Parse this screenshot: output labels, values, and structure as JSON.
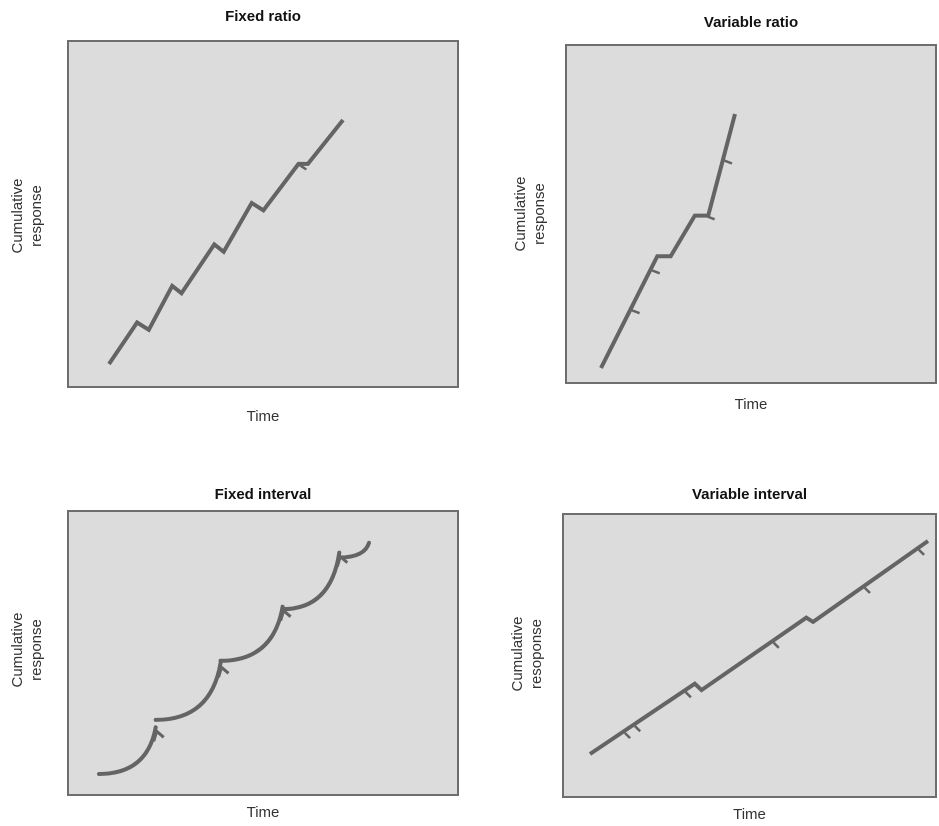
{
  "chart_data": [
    {
      "type": "line",
      "title": "Fixed ratio",
      "xlabel": "Time",
      "ylabel": [
        "Cumulative",
        "response"
      ],
      "grid": false,
      "series": [
        {
          "x": [
            0,
            0.12,
            0.17,
            0.27,
            0.31,
            0.45,
            0.49,
            0.61,
            0.66,
            0.81,
            0.85,
            1.0
          ],
          "y": [
            0,
            0.17,
            0.14,
            0.32,
            0.29,
            0.49,
            0.46,
            0.66,
            0.63,
            0.82,
            0.82,
            1.0
          ]
        }
      ],
      "reinforcement_markers_x": [
        0.12,
        0.27,
        0.45,
        0.61,
        0.81
      ]
    },
    {
      "type": "line",
      "title": "Variable ratio",
      "xlabel": "Time",
      "ylabel": [
        "Cumulative",
        "response"
      ],
      "grid": false,
      "series": [
        {
          "x": [
            0,
            0.42,
            0.52,
            0.7,
            0.8,
            1.0
          ],
          "y": [
            0,
            0.44,
            0.44,
            0.6,
            0.6,
            1.0
          ]
        }
      ],
      "reinforcement_markers_x": [
        0.22,
        0.37,
        0.78,
        0.91
      ]
    },
    {
      "type": "line",
      "title": "Fixed interval",
      "xlabel": "Time",
      "ylabel": [
        "Cumulative",
        "response"
      ],
      "grid": false,
      "series": [
        {
          "curve": "scalloped",
          "segments": 4
        }
      ],
      "reinforcement_markers_x": [
        0.21,
        0.45,
        0.68,
        0.89
      ]
    },
    {
      "type": "line",
      "title": "Variable interval",
      "xlabel": "Time",
      "ylabel": [
        "Cumulative",
        "resoponse"
      ],
      "grid": false,
      "series": [
        {
          "x": [
            0,
            0.31,
            0.33,
            0.64,
            0.66,
            1.0
          ],
          "y": [
            0,
            0.33,
            0.3,
            0.64,
            0.62,
            1.0
          ]
        }
      ],
      "reinforcement_markers_x": [
        0.1,
        0.13,
        0.28,
        0.54,
        0.81,
        0.97
      ]
    }
  ],
  "colors": {
    "line": "#646464",
    "plot_bg": "#dcdcdc",
    "frame": "#6e6e6e"
  }
}
